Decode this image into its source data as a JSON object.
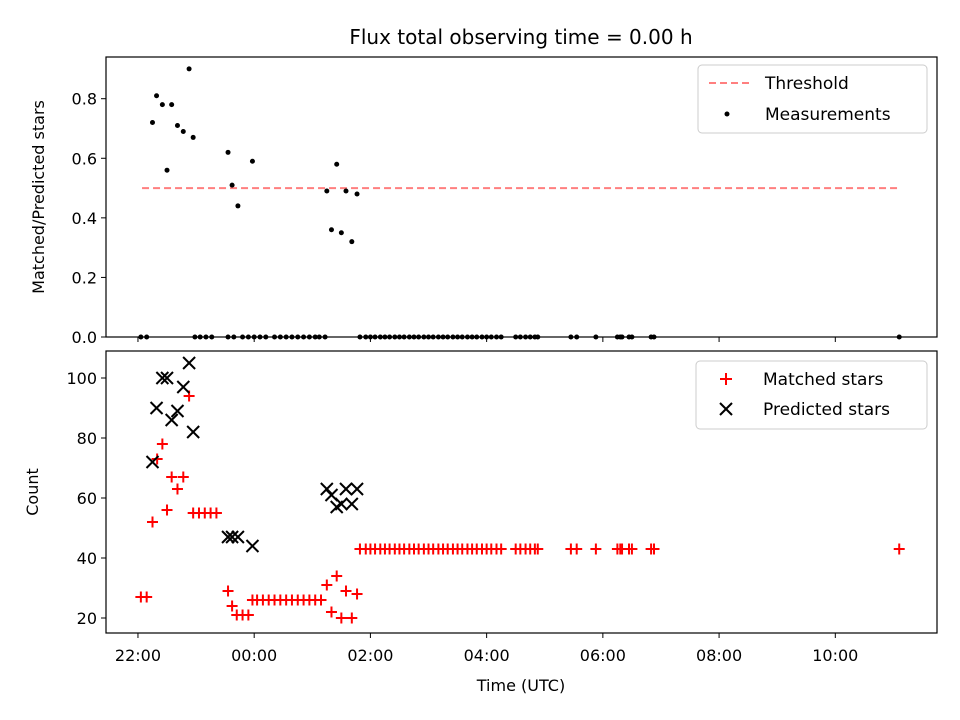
{
  "chart_data": [
    {
      "type": "scatter",
      "title": "Flux total observing time = 0.00 h",
      "ylabel": "Matched/Predicted stars",
      "xlabel": "",
      "xunit": "hours since 22:00 UTC",
      "xlim": [
        -0.55,
        13.75
      ],
      "ylim": [
        0,
        0.94
      ],
      "yticks": [
        0.0,
        0.2,
        0.4,
        0.6,
        0.8
      ],
      "ytick_labels": [
        "0.0",
        "0.2",
        "0.4",
        "0.6",
        "0.8"
      ],
      "legend": {
        "position": "top-right",
        "entries": [
          "Threshold",
          "Measurements"
        ]
      },
      "threshold": {
        "name": "Threshold",
        "y": 0.5,
        "x": [
          0.07,
          13.1
        ],
        "color": "#ff7f7f"
      },
      "series": [
        {
          "name": "Measurements",
          "color": "#000000",
          "x": [
            0.25,
            0.32,
            0.42,
            0.5,
            0.58,
            0.68,
            0.78,
            0.88,
            0.95,
            1.55,
            1.62,
            1.72,
            1.97,
            3.25,
            3.33,
            3.42,
            3.5,
            3.58,
            3.68,
            3.77,
            0.05,
            0.15,
            0.98,
            1.07,
            1.17,
            1.27,
            1.55,
            1.65,
            1.8,
            1.9,
            2.0,
            2.1,
            2.2,
            2.35,
            2.45,
            2.55,
            2.65,
            2.75,
            2.85,
            2.95,
            3.05,
            3.12,
            3.22,
            3.82,
            3.92,
            4.0,
            4.08,
            4.17,
            4.25,
            4.33,
            4.42,
            4.5,
            4.58,
            4.67,
            4.75,
            4.83,
            4.92,
            5.0,
            5.08,
            5.17,
            5.25,
            5.33,
            5.42,
            5.5,
            5.58,
            5.67,
            5.75,
            5.83,
            5.92,
            6.0,
            6.08,
            6.17,
            6.25,
            6.5,
            6.58,
            6.67,
            6.75,
            6.83,
            6.88,
            7.45,
            7.55,
            7.88,
            8.25,
            8.3,
            8.33,
            8.45,
            8.5,
            8.83,
            8.88,
            13.1
          ],
          "y": [
            0.72,
            0.81,
            0.78,
            0.56,
            0.78,
            0.71,
            0.69,
            0.9,
            0.67,
            0.62,
            0.51,
            0.44,
            0.59,
            0.49,
            0.36,
            0.58,
            0.35,
            0.49,
            0.32,
            0.48,
            0,
            0,
            0,
            0,
            0,
            0,
            0,
            0,
            0,
            0,
            0,
            0,
            0,
            0,
            0,
            0,
            0,
            0,
            0,
            0,
            0,
            0,
            0,
            0,
            0,
            0,
            0,
            0,
            0,
            0,
            0,
            0,
            0,
            0,
            0,
            0,
            0,
            0,
            0,
            0,
            0,
            0,
            0,
            0,
            0,
            0,
            0,
            0,
            0,
            0,
            0,
            0,
            0,
            0,
            0,
            0,
            0,
            0,
            0,
            0,
            0,
            0,
            0,
            0,
            0,
            0,
            0,
            0,
            0,
            0
          ]
        }
      ]
    },
    {
      "type": "scatter",
      "title": "",
      "ylabel": "Count",
      "xlabel": "Time (UTC)",
      "xunit": "hours since 22:00 UTC",
      "xlim": [
        -0.55,
        13.75
      ],
      "ylim": [
        15,
        109
      ],
      "yticks": [
        20,
        40,
        60,
        80,
        100
      ],
      "ytick_labels": [
        "20",
        "40",
        "60",
        "80",
        "100"
      ],
      "xticks": [
        0,
        2,
        4,
        6,
        8,
        10,
        12
      ],
      "xtick_labels": [
        "22:00",
        "00:00",
        "02:00",
        "04:00",
        "06:00",
        "08:00",
        "10:00"
      ],
      "legend": {
        "position": "top-right",
        "entries": [
          "Matched stars",
          "Predicted stars"
        ]
      },
      "series": [
        {
          "name": "Matched stars",
          "color": "#ff0000",
          "marker": "plus",
          "x": [
            0.05,
            0.15,
            0.25,
            0.33,
            0.42,
            0.5,
            0.58,
            0.68,
            0.78,
            0.88,
            0.95,
            1.05,
            1.15,
            1.25,
            1.35,
            1.55,
            1.62,
            1.7,
            1.8,
            1.9,
            1.97,
            2.05,
            2.15,
            2.25,
            2.35,
            2.45,
            2.55,
            2.65,
            2.75,
            2.85,
            2.95,
            3.05,
            3.15,
            3.25,
            3.33,
            3.42,
            3.5,
            3.58,
            3.68,
            3.77,
            3.82,
            3.92,
            4.0,
            4.08,
            4.17,
            4.25,
            4.33,
            4.42,
            4.5,
            4.58,
            4.67,
            4.75,
            4.83,
            4.92,
            5.0,
            5.08,
            5.17,
            5.25,
            5.33,
            5.42,
            5.5,
            5.58,
            5.67,
            5.75,
            5.83,
            5.92,
            6.0,
            6.08,
            6.17,
            6.25,
            6.5,
            6.58,
            6.67,
            6.75,
            6.83,
            6.88,
            7.45,
            7.55,
            7.88,
            8.25,
            8.3,
            8.33,
            8.45,
            8.5,
            8.83,
            8.88,
            13.1
          ],
          "y": [
            27,
            27,
            52,
            73,
            78,
            56,
            67,
            63,
            67,
            94,
            55,
            55,
            55,
            55,
            55,
            29,
            24,
            21,
            21,
            21,
            26,
            26,
            26,
            26,
            26,
            26,
            26,
            26,
            26,
            26,
            26,
            26,
            26,
            31,
            22,
            34,
            20,
            29,
            20,
            28,
            43,
            43,
            43,
            43,
            43,
            43,
            43,
            43,
            43,
            43,
            43,
            43,
            43,
            43,
            43,
            43,
            43,
            43,
            43,
            43,
            43,
            43,
            43,
            43,
            43,
            43,
            43,
            43,
            43,
            43,
            43,
            43,
            43,
            43,
            43,
            43,
            43,
            43,
            43,
            43,
            43,
            43,
            43,
            43,
            43,
            43,
            43
          ]
        },
        {
          "name": "Predicted stars",
          "color": "#000000",
          "marker": "x",
          "x": [
            0.25,
            0.32,
            0.42,
            0.5,
            0.58,
            0.68,
            0.78,
            0.88,
            0.95,
            1.55,
            1.62,
            1.72,
            1.97,
            3.25,
            3.33,
            3.42,
            3.5,
            3.58,
            3.68,
            3.77
          ],
          "y": [
            72,
            90,
            100,
            100,
            86,
            89,
            97,
            105,
            82,
            47,
            47,
            47,
            44,
            63,
            61,
            57,
            58,
            63,
            58,
            63
          ]
        }
      ]
    }
  ]
}
